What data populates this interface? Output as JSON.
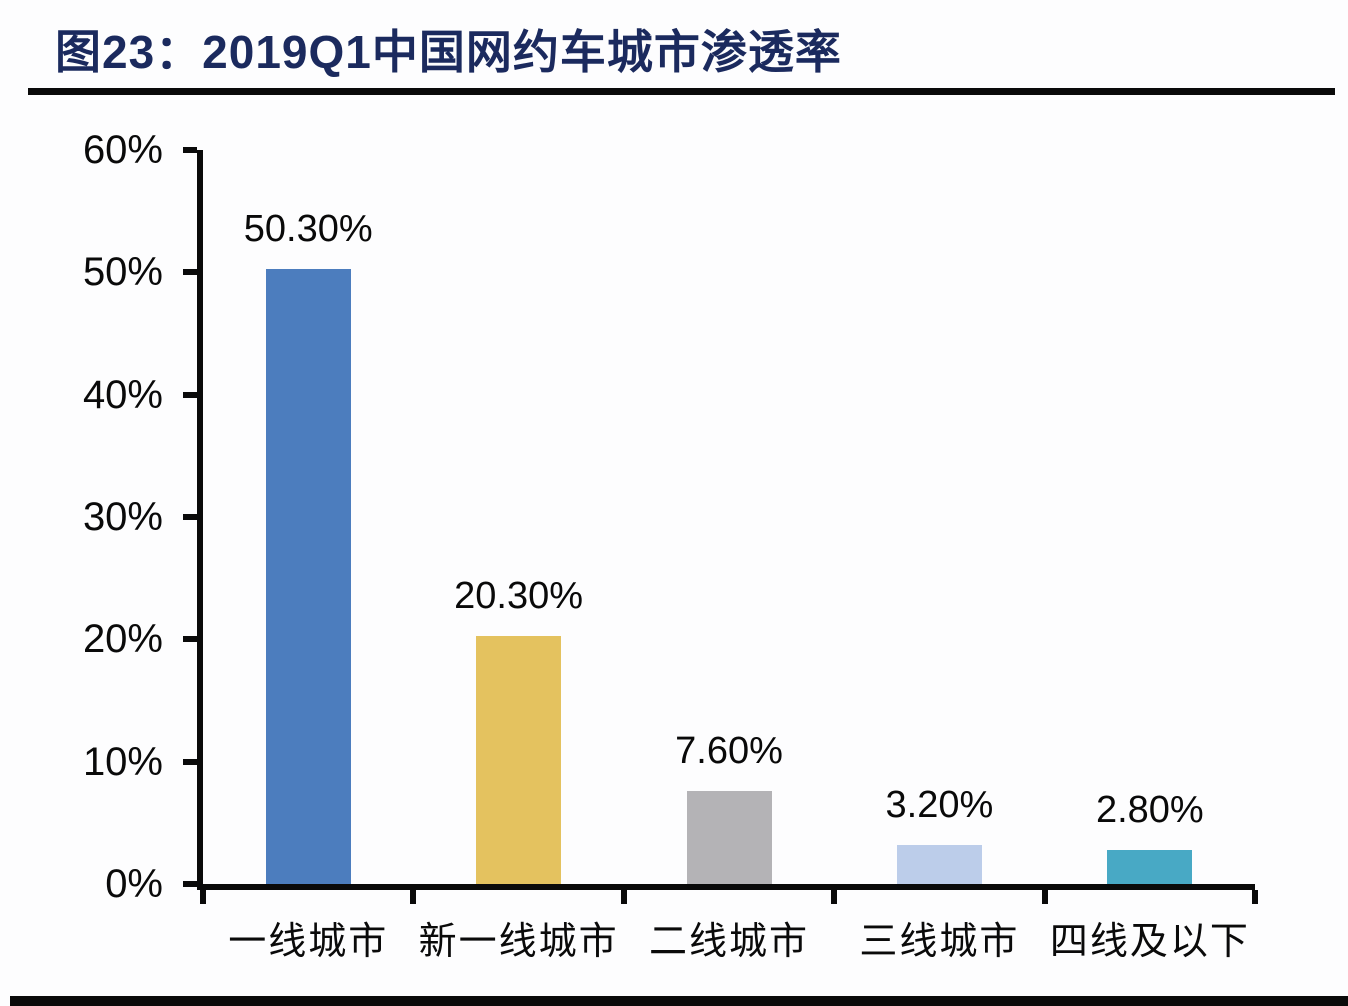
{
  "figure": {
    "title": "图23：2019Q1中国网约车城市渗透率"
  },
  "colors": {
    "title_text": "#1b2a5e",
    "axis": "#0a0a0a",
    "rule": "#0a0a0a",
    "background": "#fdfdfe"
  },
  "chart_data": {
    "type": "bar",
    "title": "2019Q1中国网约车城市渗透率",
    "categories": [
      "一线城市",
      "新一线城市",
      "二线城市",
      "三线城市",
      "四线及以下"
    ],
    "values": [
      50.3,
      20.3,
      7.6,
      3.2,
      2.8
    ],
    "value_labels": [
      "50.30%",
      "20.30%",
      "7.60%",
      "3.20%",
      "2.80%"
    ],
    "bar_colors": [
      "#4c7dbe",
      "#e4c25f",
      "#b4b3b6",
      "#bccdea",
      "#48a9c5"
    ],
    "xlabel": "",
    "ylabel": "",
    "ylim": [
      0,
      60
    ],
    "ytick_values": [
      0,
      10,
      20,
      30,
      40,
      50,
      60
    ],
    "ytick_labels": [
      "0%",
      "10%",
      "20%",
      "30%",
      "40%",
      "50%",
      "60%"
    ],
    "grid": false,
    "legend_position": "none"
  }
}
